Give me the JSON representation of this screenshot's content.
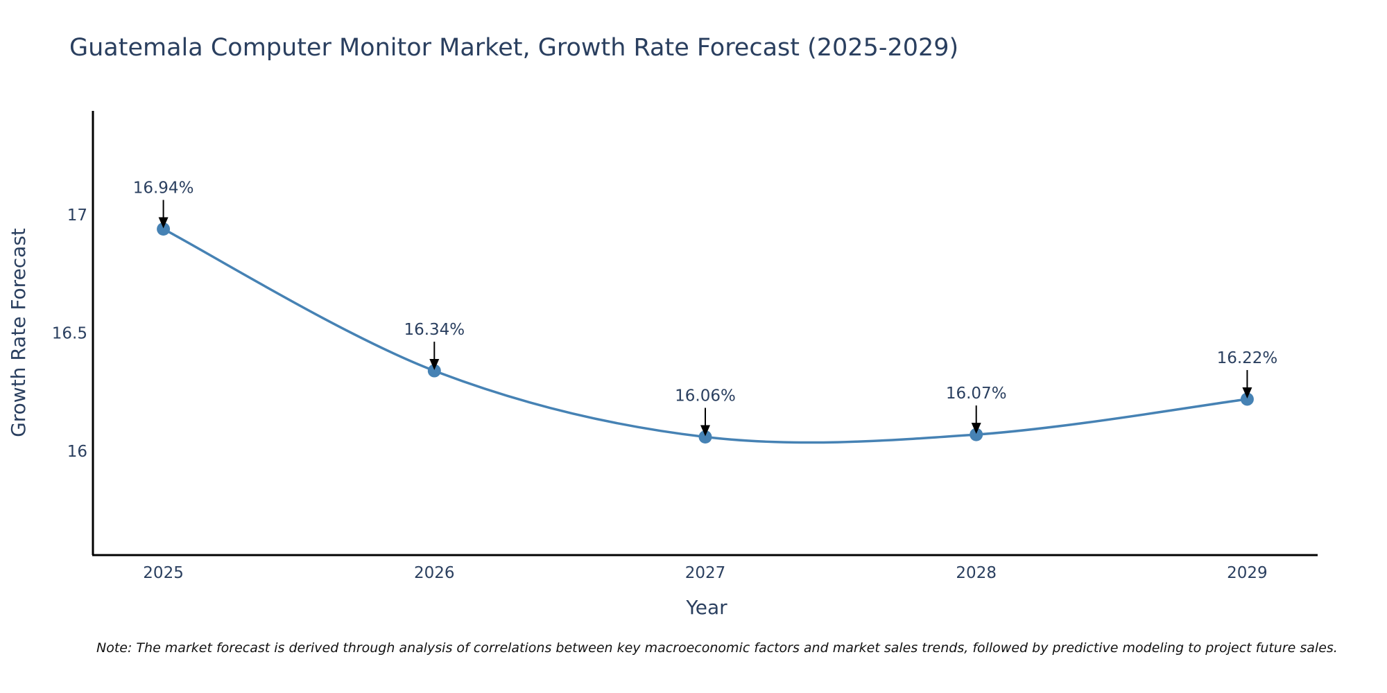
{
  "chart_data": {
    "type": "line",
    "title": "Guatemala Computer Monitor Market, Growth Rate Forecast (2025-2029)",
    "xlabel": "Year",
    "ylabel": "Growth Rate Forecast",
    "categories": [
      "2025",
      "2026",
      "2027",
      "2028",
      "2029"
    ],
    "x": [
      2025,
      2026,
      2027,
      2028,
      2029
    ],
    "series": [
      {
        "name": "Growth Rate Forecast",
        "values": [
          16.94,
          16.34,
          16.06,
          16.07,
          16.22
        ]
      }
    ],
    "data_labels": [
      "16.94%",
      "16.34%",
      "16.06%",
      "16.07%",
      "16.22%"
    ],
    "yticks": [
      16,
      16.5,
      17
    ],
    "ytick_labels": [
      "16",
      "16.5",
      "17"
    ],
    "xlim": [
      2024.74,
      2029.26
    ],
    "ylim": [
      15.56,
      17.44
    ],
    "grid": false,
    "line_color": "#4682b4",
    "axis_color": "#000000",
    "text_color": "#2a3f5f",
    "note": "Note: The market forecast is derived through analysis of correlations between key macroeconomic factors and market sales trends, followed by predictive modeling to project future sales."
  }
}
